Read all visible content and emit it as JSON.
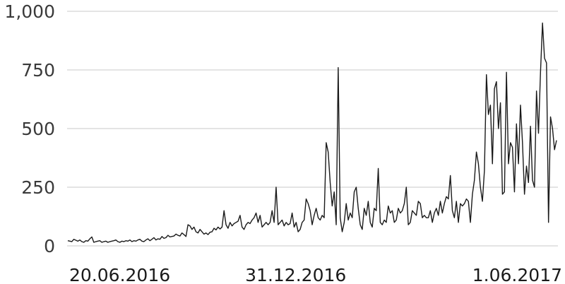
{
  "chart_data": {
    "type": "line",
    "title": "",
    "xlabel": "",
    "ylabel": "",
    "ylim": [
      0,
      1000
    ],
    "grid": true,
    "legend": "none",
    "y_ticks": [
      {
        "value": 0,
        "label": "0"
      },
      {
        "value": 250,
        "label": "250"
      },
      {
        "value": 500,
        "label": "500"
      },
      {
        "value": 750,
        "label": "750"
      },
      {
        "value": 1000,
        "label": "1,000"
      }
    ],
    "x_ticks": [
      {
        "value": "2016-06-20",
        "label": "20.06.2016"
      },
      {
        "value": "2016-12-31",
        "label": "31.12.2016"
      },
      {
        "value": "2017-06-01",
        "label": "1.06.2017"
      }
    ],
    "x_start": "2016-06-20",
    "x_end": "2017-08-10",
    "colors": {
      "line": "#1a1a1a",
      "grid": "#c8c8c8"
    },
    "series": [
      {
        "values": [
          22,
          20,
          18,
          28,
          24,
          20,
          25,
          18,
          15,
          22,
          20,
          30,
          38,
          15,
          18,
          20,
          22,
          15,
          18,
          20,
          15,
          18,
          20,
          22,
          25,
          18,
          15,
          20,
          18,
          22,
          20,
          25,
          18,
          22,
          20,
          25,
          28,
          20,
          18,
          25,
          30,
          22,
          28,
          35,
          25,
          30,
          28,
          40,
          32,
          35,
          45,
          38,
          40,
          42,
          50,
          45,
          42,
          55,
          48,
          40,
          90,
          85,
          70,
          80,
          60,
          55,
          70,
          60,
          50,
          55,
          48,
          58,
          60,
          75,
          68,
          80,
          72,
          80,
          150,
          90,
          75,
          100,
          85,
          95,
          100,
          105,
          130,
          80,
          70,
          90,
          100,
          95,
          110,
          120,
          140,
          100,
          130,
          80,
          90,
          100,
          90,
          100,
          150,
          100,
          250,
          90,
          100,
          110,
          85,
          100,
          90,
          95,
          140,
          80,
          100,
          60,
          70,
          100,
          110,
          200,
          180,
          150,
          90,
          130,
          160,
          120,
          110,
          130,
          120,
          440,
          400,
          270,
          170,
          230,
          90,
          760,
          120,
          60,
          100,
          180,
          110,
          140,
          120,
          230,
          250,
          160,
          90,
          70,
          160,
          130,
          190,
          100,
          80,
          160,
          150,
          330,
          100,
          90,
          110,
          100,
          170,
          140,
          150,
          100,
          110,
          160,
          140,
          150,
          180,
          250,
          90,
          100,
          150,
          140,
          130,
          190,
          180,
          120,
          130,
          120,
          120,
          150,
          100,
          140,
          160,
          130,
          190,
          140,
          180,
          210,
          200,
          300,
          150,
          120,
          190,
          100,
          180,
          170,
          180,
          200,
          190,
          100,
          220,
          280,
          400,
          350,
          250,
          190,
          320,
          730,
          560,
          600,
          350,
          670,
          700,
          500,
          610,
          220,
          230,
          740,
          350,
          440,
          420,
          230,
          520,
          350,
          600,
          440,
          220,
          340,
          270,
          510,
          280,
          250,
          660,
          480,
          740,
          950,
          800,
          780,
          100,
          550,
          500,
          410,
          450
        ]
      }
    ]
  }
}
